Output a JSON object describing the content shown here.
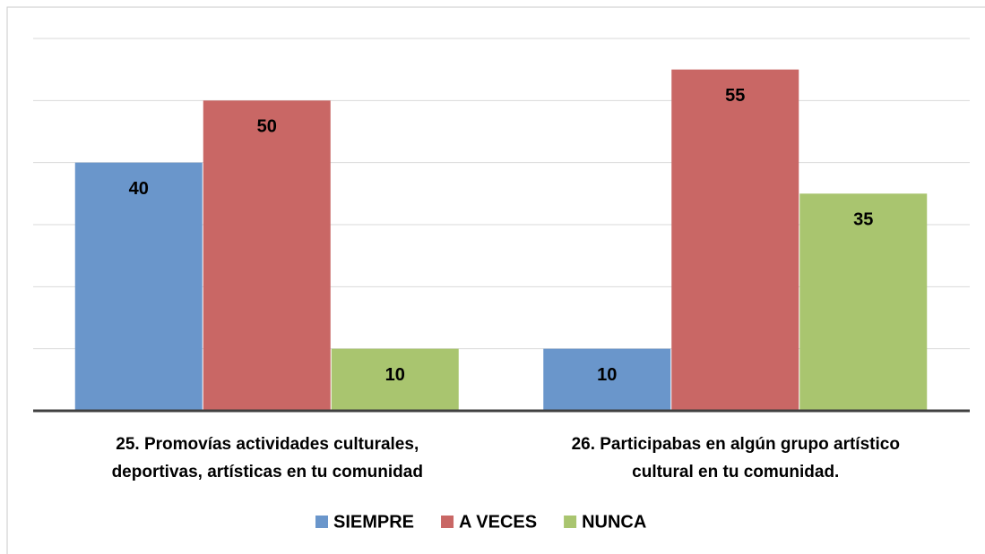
{
  "chart_data": {
    "type": "bar",
    "categories": [
      "25. Promovías actividades culturales,\ndeportivas, artísticas en tu comunidad",
      "26. Participabas en algún grupo artístico\ncultural en tu comunidad."
    ],
    "series": [
      {
        "name": "SIEMPRE",
        "color": "#6a96cb",
        "values": [
          40,
          10
        ]
      },
      {
        "name": "A VECES",
        "color": "#c96765",
        "values": [
          50,
          55
        ]
      },
      {
        "name": "NUNCA",
        "color": "#a9c56f",
        "values": [
          10,
          35
        ]
      }
    ],
    "ylim": [
      0,
      60
    ],
    "yticks": [
      0,
      10,
      20,
      30,
      40,
      50,
      60
    ],
    "grid": true,
    "legend": "bottom"
  }
}
